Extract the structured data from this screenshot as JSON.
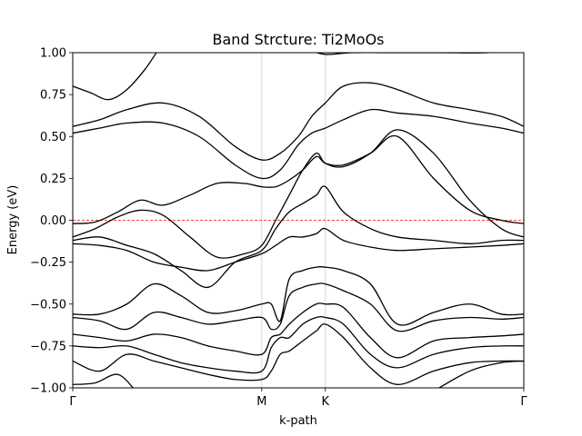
{
  "chart_data": {
    "type": "line",
    "title": "Band Strcture: Ti2MoOs",
    "xlabel": "k-path",
    "ylabel": "Energy (eV)",
    "ylim": [
      -1.0,
      1.0
    ],
    "xlim": [
      0,
      1
    ],
    "yticks": [
      -1.0,
      -0.75,
      -0.5,
      -0.25,
      0.0,
      0.25,
      0.5,
      0.75,
      1.0
    ],
    "ytick_labels": [
      "−1.00",
      "−0.75",
      "−0.50",
      "−0.25",
      "0.00",
      "0.25",
      "0.50",
      "0.75",
      "1.00"
    ],
    "kpoints": [
      {
        "label": "Γ",
        "x": 0.0
      },
      {
        "label": "M",
        "x": 0.419
      },
      {
        "label": "K",
        "x": 0.56
      },
      {
        "label": "Γ",
        "x": 1.0
      }
    ],
    "fermi_level": 0.0,
    "colors": {
      "bands": "#000000",
      "fermi": "#ff0000",
      "vlines": "#cccccc"
    },
    "series": [
      {
        "x": [
          0.0,
          0.04,
          0.08,
          0.12,
          0.16,
          0.19
        ],
        "values": [
          0.8,
          0.76,
          0.72,
          0.78,
          0.9,
          1.02
        ]
      },
      {
        "x": [
          0.0,
          0.06,
          0.12,
          0.2,
          0.28,
          0.36,
          0.419,
          0.46,
          0.5,
          0.53,
          0.56,
          0.6,
          0.66,
          0.72,
          0.8,
          0.88,
          0.95,
          1.0
        ],
        "values": [
          0.56,
          0.6,
          0.66,
          0.7,
          0.62,
          0.44,
          0.36,
          0.4,
          0.5,
          0.62,
          0.7,
          0.8,
          0.82,
          0.78,
          0.7,
          0.66,
          0.62,
          0.56
        ]
      },
      {
        "x": [
          0.0,
          0.06,
          0.12,
          0.2,
          0.28,
          0.36,
          0.419,
          0.46,
          0.5,
          0.53,
          0.56,
          0.6,
          0.66,
          0.72,
          0.8,
          0.88,
          0.95,
          1.0
        ],
        "values": [
          0.52,
          0.55,
          0.58,
          0.58,
          0.5,
          0.33,
          0.25,
          0.3,
          0.45,
          0.52,
          0.55,
          0.6,
          0.66,
          0.64,
          0.62,
          0.58,
          0.55,
          0.52
        ]
      },
      {
        "x": [
          0.0,
          0.05,
          0.1,
          0.15,
          0.2,
          0.26,
          0.32,
          0.38,
          0.419,
          0.45,
          0.48,
          0.51,
          0.54,
          0.56,
          0.6,
          0.66,
          0.72,
          0.8,
          0.88,
          0.95,
          1.0
        ],
        "values": [
          -0.02,
          -0.01,
          0.05,
          0.12,
          0.09,
          0.15,
          0.22,
          0.22,
          0.2,
          0.2,
          0.24,
          0.3,
          0.38,
          0.34,
          0.33,
          0.4,
          0.5,
          0.25,
          0.06,
          0.0,
          -0.02
        ]
      },
      {
        "x": [
          0.0,
          0.05,
          0.1,
          0.15,
          0.2,
          0.26,
          0.32,
          0.38,
          0.419,
          0.45,
          0.48,
          0.51,
          0.54,
          0.56,
          0.6,
          0.66,
          0.72,
          0.8,
          0.88,
          0.95,
          1.0
        ],
        "values": [
          -0.1,
          -0.05,
          0.02,
          0.06,
          0.03,
          -0.1,
          -0.22,
          -0.2,
          -0.15,
          0.0,
          0.15,
          0.3,
          0.4,
          0.34,
          0.32,
          0.4,
          0.54,
          0.4,
          0.12,
          -0.05,
          -0.1
        ]
      },
      {
        "x": [
          0.0,
          0.06,
          0.12,
          0.18,
          0.24,
          0.3,
          0.36,
          0.419,
          0.45,
          0.48,
          0.51,
          0.54,
          0.56,
          0.6,
          0.66,
          0.72,
          0.8,
          0.88,
          0.95,
          1.0
        ],
        "values": [
          -0.12,
          -0.1,
          -0.15,
          -0.2,
          -0.3,
          -0.4,
          -0.25,
          -0.18,
          -0.05,
          0.05,
          0.1,
          0.15,
          0.2,
          0.05,
          -0.05,
          -0.1,
          -0.12,
          -0.14,
          -0.12,
          -0.12
        ]
      },
      {
        "x": [
          0.0,
          0.06,
          0.12,
          0.18,
          0.24,
          0.3,
          0.36,
          0.419,
          0.45,
          0.48,
          0.51,
          0.54,
          0.56,
          0.6,
          0.66,
          0.72,
          0.8,
          0.88,
          0.95,
          1.0
        ],
        "values": [
          -0.14,
          -0.15,
          -0.18,
          -0.25,
          -0.28,
          -0.3,
          -0.25,
          -0.2,
          -0.15,
          -0.1,
          -0.1,
          -0.08,
          -0.05,
          -0.12,
          -0.16,
          -0.18,
          -0.17,
          -0.16,
          -0.15,
          -0.14
        ]
      },
      {
        "x": [
          0.0,
          0.06,
          0.12,
          0.18,
          0.24,
          0.3,
          0.36,
          0.419,
          0.44,
          0.46,
          0.48,
          0.51,
          0.54,
          0.56,
          0.6,
          0.66,
          0.72,
          0.8,
          0.88,
          0.95,
          1.0
        ],
        "values": [
          -0.56,
          -0.56,
          -0.5,
          -0.38,
          -0.45,
          -0.55,
          -0.54,
          -0.5,
          -0.5,
          -0.6,
          -0.35,
          -0.3,
          -0.28,
          -0.28,
          -0.3,
          -0.38,
          -0.62,
          -0.55,
          -0.5,
          -0.56,
          -0.56
        ]
      },
      {
        "x": [
          0.0,
          0.06,
          0.12,
          0.18,
          0.24,
          0.3,
          0.36,
          0.419,
          0.44,
          0.46,
          0.48,
          0.51,
          0.54,
          0.56,
          0.6,
          0.66,
          0.72,
          0.8,
          0.88,
          0.95,
          1.0
        ],
        "values": [
          -0.58,
          -0.6,
          -0.65,
          -0.55,
          -0.58,
          -0.62,
          -0.6,
          -0.58,
          -0.65,
          -0.62,
          -0.45,
          -0.4,
          -0.38,
          -0.38,
          -0.42,
          -0.5,
          -0.66,
          -0.6,
          -0.58,
          -0.59,
          -0.58
        ]
      },
      {
        "x": [
          0.0,
          0.06,
          0.12,
          0.18,
          0.24,
          0.3,
          0.36,
          0.419,
          0.44,
          0.46,
          0.48,
          0.51,
          0.54,
          0.56,
          0.6,
          0.66,
          0.72,
          0.8,
          0.88,
          0.95,
          1.0
        ],
        "values": [
          -0.68,
          -0.7,
          -0.72,
          -0.68,
          -0.7,
          -0.75,
          -0.78,
          -0.8,
          -0.7,
          -0.68,
          -0.62,
          -0.55,
          -0.5,
          -0.5,
          -0.52,
          -0.7,
          -0.82,
          -0.72,
          -0.7,
          -0.69,
          -0.68
        ]
      },
      {
        "x": [
          0.0,
          0.06,
          0.12,
          0.18,
          0.24,
          0.3,
          0.36,
          0.419,
          0.44,
          0.46,
          0.48,
          0.51,
          0.54,
          0.56,
          0.6,
          0.66,
          0.72,
          0.8,
          0.88,
          0.95,
          1.0
        ],
        "values": [
          -0.75,
          -0.76,
          -0.75,
          -0.8,
          -0.85,
          -0.88,
          -0.9,
          -0.9,
          -0.76,
          -0.7,
          -0.7,
          -0.62,
          -0.58,
          -0.58,
          -0.62,
          -0.8,
          -0.88,
          -0.8,
          -0.76,
          -0.75,
          -0.75
        ]
      },
      {
        "x": [
          0.0,
          0.06,
          0.12,
          0.18,
          0.24,
          0.3,
          0.36,
          0.419,
          0.44,
          0.46,
          0.48,
          0.51,
          0.54,
          0.56,
          0.6,
          0.66,
          0.72,
          0.8,
          0.88,
          0.95,
          1.0
        ],
        "values": [
          -0.84,
          -0.9,
          -0.8,
          -0.84,
          -0.88,
          -0.92,
          -0.95,
          -0.95,
          -0.9,
          -0.8,
          -0.78,
          -0.72,
          -0.66,
          -0.62,
          -0.7,
          -0.88,
          -0.98,
          -0.9,
          -0.85,
          -0.84,
          -0.84
        ]
      },
      {
        "x": [
          0.0,
          0.05,
          0.1,
          0.14
        ],
        "values": [
          -0.98,
          -0.97,
          -0.92,
          -1.02
        ]
      },
      {
        "x": [
          0.8,
          0.88,
          0.95,
          1.0
        ],
        "values": [
          -1.02,
          -0.9,
          -0.85,
          -0.84
        ]
      },
      {
        "x": [
          0.52,
          0.56,
          0.62,
          0.72,
          0.82,
          0.92,
          1.0
        ],
        "values": [
          1.02,
          0.99,
          1.0,
          1.0,
          1.0,
          1.0,
          1.02
        ]
      }
    ]
  }
}
